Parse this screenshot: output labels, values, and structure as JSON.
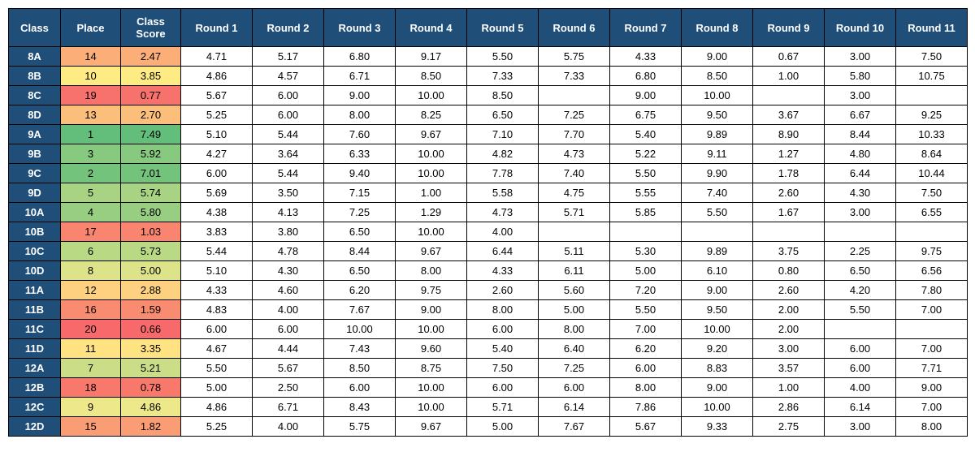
{
  "table": {
    "header_bg": "#1f4e79",
    "header_fg": "#ffffff",
    "cell_border": "#000000",
    "font_family": "Arial, Helvetica, sans-serif",
    "header_fontsize": 13,
    "cell_fontsize": 13,
    "columns": [
      "Class",
      "Place",
      "Class Score",
      "Round 1",
      "Round 2",
      "Round 3",
      "Round 4",
      "Round 5",
      "Round 6",
      "Round 7",
      "Round 8",
      "Round 9",
      "Round 10",
      "Round 11"
    ],
    "place_score_heatmap": {
      "comment": "Place and Class Score columns share a green-to-red heatmap by rank. Colors sampled from image.",
      "colors_by_place": {
        "1": "#63be7b",
        "2": "#74c37d",
        "3": "#86c97f",
        "4": "#97ce81",
        "5": "#a8d383",
        "6": "#b9d985",
        "7": "#cbde87",
        "8": "#dce389",
        "9": "#ede98b",
        "10": "#ffeb84",
        "11": "#ffe383",
        "12": "#fdd17f",
        "13": "#fcbf7b",
        "14": "#fbae78",
        "15": "#fa9c74",
        "16": "#f98b70",
        "17": "#f98570",
        "18": "#f8796c",
        "19": "#f8726d",
        "20": "#f8696b"
      }
    },
    "rows": [
      {
        "class": "8A",
        "place": 14,
        "score": "2.47",
        "rounds": [
          "4.71",
          "5.17",
          "6.80",
          "9.17",
          "5.50",
          "5.75",
          "4.33",
          "9.00",
          "0.67",
          "3.00",
          "7.50"
        ]
      },
      {
        "class": "8B",
        "place": 10,
        "score": "3.85",
        "rounds": [
          "4.86",
          "4.57",
          "6.71",
          "8.50",
          "7.33",
          "7.33",
          "6.80",
          "8.50",
          "1.00",
          "5.80",
          "10.75"
        ]
      },
      {
        "class": "8C",
        "place": 19,
        "score": "0.77",
        "rounds": [
          "5.67",
          "6.00",
          "9.00",
          "10.00",
          "8.50",
          "",
          "9.00",
          "10.00",
          "",
          "3.00",
          ""
        ]
      },
      {
        "class": "8D",
        "place": 13,
        "score": "2.70",
        "rounds": [
          "5.25",
          "6.00",
          "8.00",
          "8.25",
          "6.50",
          "7.25",
          "6.75",
          "9.50",
          "3.67",
          "6.67",
          "9.25"
        ]
      },
      {
        "class": "9A",
        "place": 1,
        "score": "7.49",
        "rounds": [
          "5.10",
          "5.44",
          "7.60",
          "9.67",
          "7.10",
          "7.70",
          "5.40",
          "9.89",
          "8.90",
          "8.44",
          "10.33"
        ]
      },
      {
        "class": "9B",
        "place": 3,
        "score": "5.92",
        "rounds": [
          "4.27",
          "3.64",
          "6.33",
          "10.00",
          "4.82",
          "4.73",
          "5.22",
          "9.11",
          "1.27",
          "4.80",
          "8.64"
        ]
      },
      {
        "class": "9C",
        "place": 2,
        "score": "7.01",
        "rounds": [
          "6.00",
          "5.44",
          "9.40",
          "10.00",
          "7.78",
          "7.40",
          "5.50",
          "9.90",
          "1.78",
          "6.44",
          "10.44"
        ]
      },
      {
        "class": "9D",
        "place": 5,
        "score": "5.74",
        "rounds": [
          "5.69",
          "3.50",
          "7.15",
          "1.00",
          "5.58",
          "4.75",
          "5.55",
          "7.40",
          "2.60",
          "4.30",
          "7.50"
        ]
      },
      {
        "class": "10A",
        "place": 4,
        "score": "5.80",
        "rounds": [
          "4.38",
          "4.13",
          "7.25",
          "1.29",
          "4.73",
          "5.71",
          "5.85",
          "5.50",
          "1.67",
          "3.00",
          "6.55"
        ]
      },
      {
        "class": "10B",
        "place": 17,
        "score": "1.03",
        "rounds": [
          "3.83",
          "3.80",
          "6.50",
          "10.00",
          "4.00",
          "",
          "",
          "",
          "",
          "",
          ""
        ]
      },
      {
        "class": "10C",
        "place": 6,
        "score": "5.73",
        "rounds": [
          "5.44",
          "4.78",
          "8.44",
          "9.67",
          "6.44",
          "5.11",
          "5.30",
          "9.89",
          "3.75",
          "2.25",
          "9.75"
        ]
      },
      {
        "class": "10D",
        "place": 8,
        "score": "5.00",
        "rounds": [
          "5.10",
          "4.30",
          "6.50",
          "8.00",
          "4.33",
          "6.11",
          "5.00",
          "6.10",
          "0.80",
          "6.50",
          "6.56"
        ]
      },
      {
        "class": "11A",
        "place": 12,
        "score": "2.88",
        "rounds": [
          "4.33",
          "4.60",
          "6.20",
          "9.75",
          "2.60",
          "5.60",
          "7.20",
          "9.00",
          "2.60",
          "4.20",
          "7.80"
        ]
      },
      {
        "class": "11B",
        "place": 16,
        "score": "1.59",
        "rounds": [
          "4.83",
          "4.00",
          "7.67",
          "9.00",
          "8.00",
          "5.00",
          "5.50",
          "9.50",
          "2.00",
          "5.50",
          "7.00"
        ]
      },
      {
        "class": "11C",
        "place": 20,
        "score": "0.66",
        "rounds": [
          "6.00",
          "6.00",
          "10.00",
          "10.00",
          "6.00",
          "8.00",
          "7.00",
          "10.00",
          "2.00",
          "",
          ""
        ]
      },
      {
        "class": "11D",
        "place": 11,
        "score": "3.35",
        "rounds": [
          "4.67",
          "4.44",
          "7.43",
          "9.60",
          "5.40",
          "6.40",
          "6.20",
          "9.20",
          "3.00",
          "6.00",
          "7.00"
        ]
      },
      {
        "class": "12A",
        "place": 7,
        "score": "5.21",
        "rounds": [
          "5.50",
          "5.67",
          "8.50",
          "8.75",
          "7.50",
          "7.25",
          "6.00",
          "8.83",
          "3.57",
          "6.00",
          "7.71"
        ]
      },
      {
        "class": "12B",
        "place": 18,
        "score": "0.78",
        "rounds": [
          "5.00",
          "2.50",
          "6.00",
          "10.00",
          "6.00",
          "6.00",
          "8.00",
          "9.00",
          "1.00",
          "4.00",
          "9.00"
        ]
      },
      {
        "class": "12C",
        "place": 9,
        "score": "4.86",
        "rounds": [
          "4.86",
          "6.71",
          "8.43",
          "10.00",
          "5.71",
          "6.14",
          "7.86",
          "10.00",
          "2.86",
          "6.14",
          "7.00"
        ]
      },
      {
        "class": "12D",
        "place": 15,
        "score": "1.82",
        "rounds": [
          "5.25",
          "4.00",
          "5.75",
          "9.67",
          "5.00",
          "7.67",
          "5.67",
          "9.33",
          "2.75",
          "3.00",
          "8.00"
        ]
      }
    ]
  }
}
